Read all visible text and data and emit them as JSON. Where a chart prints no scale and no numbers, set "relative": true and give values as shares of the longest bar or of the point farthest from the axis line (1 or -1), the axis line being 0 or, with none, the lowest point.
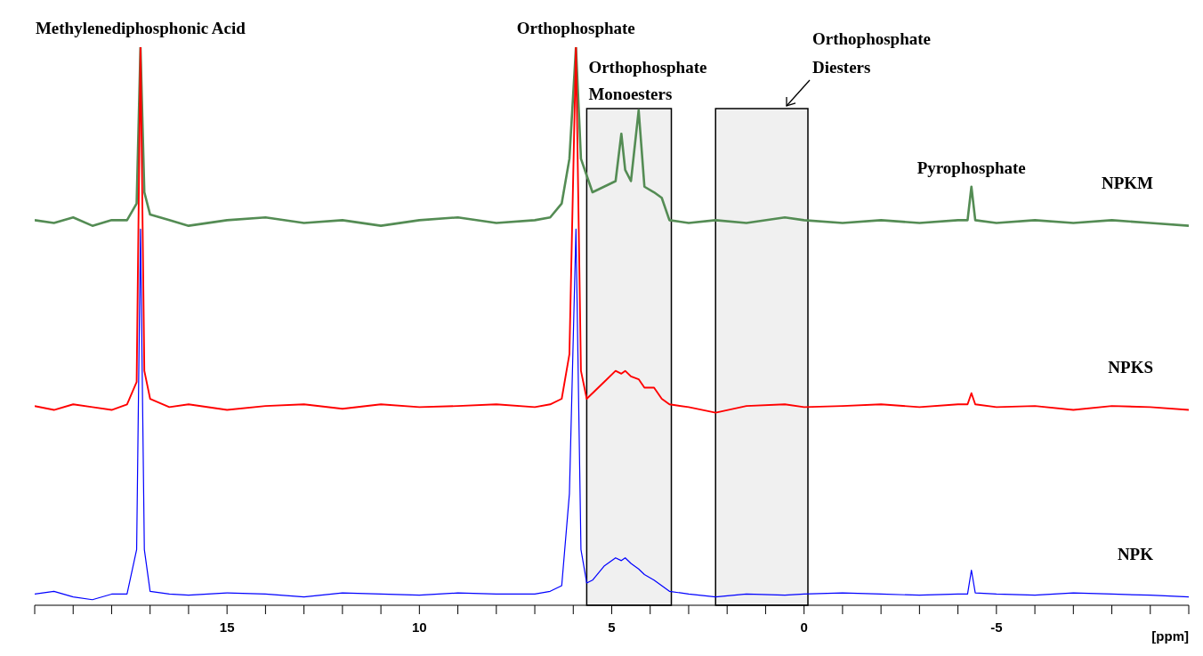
{
  "chart_data": {
    "type": "line",
    "relative": true,
    "xlabel": "[ppm]",
    "xlim": [
      20,
      -10
    ],
    "xticks": [
      {
        "value": 20,
        "label": null
      },
      {
        "value": 19,
        "label": null
      },
      {
        "value": 18,
        "label": null
      },
      {
        "value": 17,
        "label": null
      },
      {
        "value": 16,
        "label": null
      },
      15,
      {
        "value": 14,
        "label": null
      },
      {
        "value": 13,
        "label": null
      },
      {
        "value": 12,
        "label": null
      },
      {
        "value": 11,
        "label": null
      },
      10,
      {
        "value": 9,
        "label": null
      },
      {
        "value": 8,
        "label": null
      },
      {
        "value": 7,
        "label": null
      },
      {
        "value": 6,
        "label": null
      },
      5,
      {
        "value": 4,
        "label": null
      },
      {
        "value": 3,
        "label": null
      },
      {
        "value": 2,
        "label": null
      },
      {
        "value": 1,
        "label": null
      },
      0,
      {
        "value": -1,
        "label": null
      },
      {
        "value": -2,
        "label": null
      },
      {
        "value": -3,
        "label": null
      },
      {
        "value": -4,
        "label": null
      },
      -5,
      {
        "value": -6,
        "label": null
      },
      {
        "value": -7,
        "label": null
      },
      {
        "value": -8,
        "label": null
      },
      {
        "value": -9,
        "label": null
      },
      {
        "value": -10,
        "label": null
      }
    ],
    "x": [
      20,
      19.5,
      19,
      18.5,
      18,
      17.6,
      17.35,
      17.25,
      17.15,
      17,
      16.5,
      16,
      15,
      14,
      13,
      12,
      11,
      10,
      9,
      8,
      7,
      6.6,
      6.3,
      6.1,
      5.93,
      5.8,
      5.65,
      5.5,
      5.2,
      4.9,
      4.75,
      4.65,
      4.5,
      4.3,
      4.15,
      3.9,
      3.7,
      3.5,
      3,
      2.3,
      1.5,
      0.5,
      0,
      -1,
      -2,
      -3,
      -4,
      -4.25,
      -4.35,
      -4.45,
      -5,
      -6,
      -7,
      -8,
      -9,
      -10
    ],
    "series": [
      {
        "name": "NPKM",
        "color": "#548c54",
        "values": [
          0.69,
          0.685,
          0.695,
          0.68,
          0.69,
          0.69,
          0.72,
          1,
          0.74,
          0.7,
          0.69,
          0.68,
          0.69,
          0.695,
          0.685,
          0.69,
          0.68,
          0.69,
          0.695,
          0.685,
          0.69,
          0.695,
          0.72,
          0.8,
          1,
          0.8,
          0.77,
          0.74,
          0.75,
          0.76,
          0.845,
          0.78,
          0.76,
          0.887,
          0.75,
          0.74,
          0.73,
          0.69,
          0.685,
          0.69,
          0.685,
          0.695,
          0.69,
          0.685,
          0.69,
          0.685,
          0.69,
          0.69,
          0.75,
          0.69,
          0.685,
          0.69,
          0.685,
          0.69,
          0.685,
          0.68
        ]
      },
      {
        "name": "NPKS",
        "color": "#ff0000",
        "values": [
          0.357,
          0.35,
          0.36,
          0.355,
          0.35,
          0.36,
          0.4,
          1,
          0.42,
          0.37,
          0.355,
          0.36,
          0.35,
          0.357,
          0.36,
          0.352,
          0.36,
          0.355,
          0.357,
          0.36,
          0.355,
          0.36,
          0.37,
          0.45,
          1,
          0.42,
          0.37,
          0.38,
          0.4,
          0.42,
          0.415,
          0.42,
          0.41,
          0.405,
          0.39,
          0.39,
          0.37,
          0.36,
          0.355,
          0.345,
          0.357,
          0.36,
          0.355,
          0.357,
          0.36,
          0.355,
          0.36,
          0.36,
          0.38,
          0.36,
          0.355,
          0.357,
          0.35,
          0.357,
          0.355,
          0.35
        ]
      },
      {
        "name": "NPK",
        "color": "#0000ff",
        "values": [
          0.02,
          0.025,
          0.015,
          0.01,
          0.02,
          0.02,
          0.1,
          0.674,
          0.1,
          0.025,
          0.02,
          0.018,
          0.022,
          0.02,
          0.015,
          0.022,
          0.02,
          0.018,
          0.022,
          0.02,
          0.02,
          0.025,
          0.035,
          0.2,
          0.674,
          0.1,
          0.04,
          0.045,
          0.07,
          0.085,
          0.08,
          0.085,
          0.075,
          0.065,
          0.055,
          0.045,
          0.035,
          0.025,
          0.02,
          0.015,
          0.02,
          0.018,
          0.02,
          0.022,
          0.02,
          0.018,
          0.02,
          0.02,
          0.063,
          0.022,
          0.02,
          0.018,
          0.022,
          0.02,
          0.018,
          0.015
        ]
      }
    ],
    "bands": [
      {
        "axis": "x",
        "from": 5.65,
        "to": 3.45,
        "label": "Orthophosphate Monoesters",
        "color": "#000000"
      },
      {
        "axis": "x",
        "from": 2.3,
        "to": -0.1,
        "label": "Orthophosphate Diesters",
        "color": "#000000"
      }
    ],
    "annotations": [
      {
        "text": "Methylenediphosphonic Acid",
        "x": 17.25,
        "y": 1
      },
      {
        "text": "Orthophosphate",
        "x": 5.93,
        "y": 1
      },
      {
        "text": "Pyrophosphate",
        "x": -4.35,
        "y": 0.75
      }
    ],
    "legend": false,
    "grid": false,
    "marker": "none",
    "line_style": "solid"
  }
}
